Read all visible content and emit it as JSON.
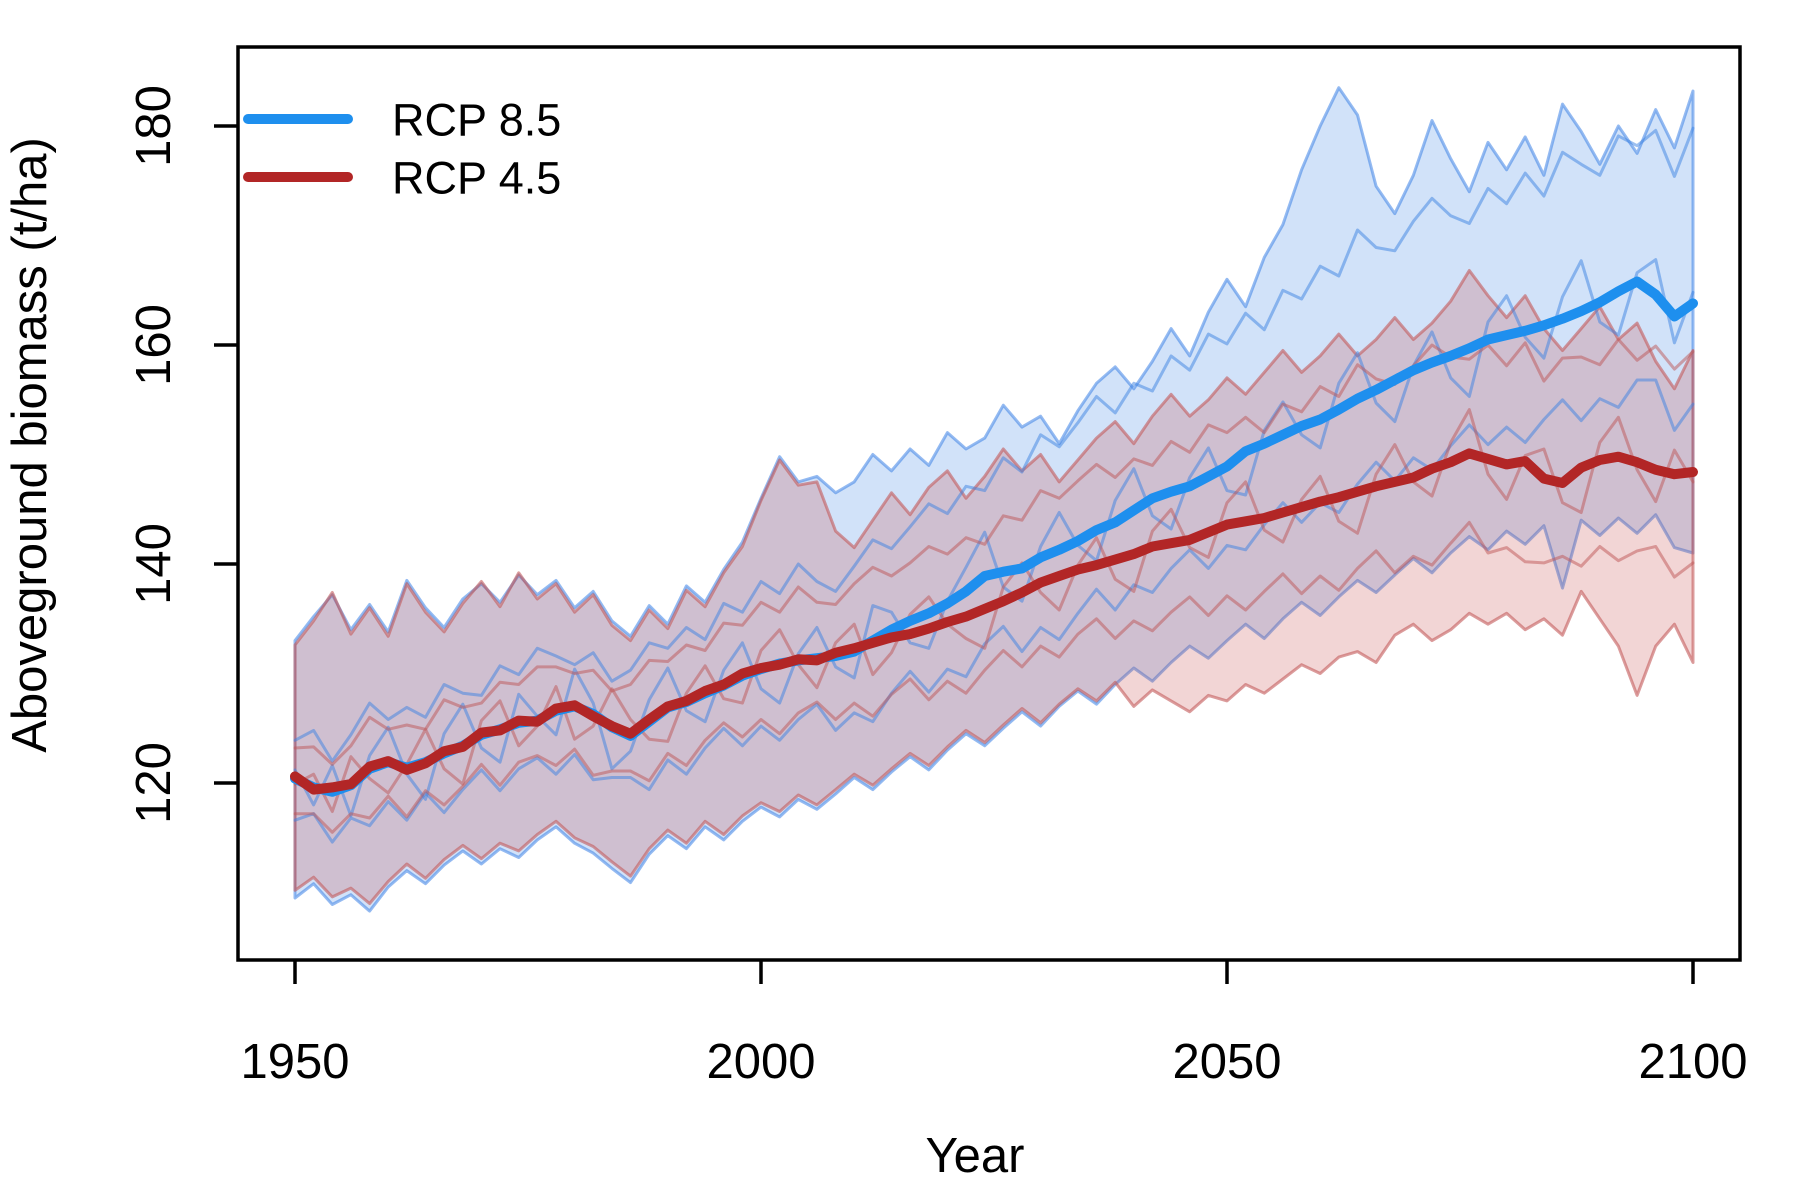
{
  "axes": {
    "x": {
      "label": "Year",
      "ticks": [
        "1950",
        "2000",
        "2050",
        "2100"
      ],
      "tick_values": [
        1950,
        2000,
        2050,
        2100
      ]
    },
    "y": {
      "label": "Aboveground biomass (t/ha)",
      "ticks": [
        "120",
        "140",
        "160",
        "180"
      ],
      "tick_values": [
        120,
        140,
        160,
        180
      ]
    }
  },
  "legend": {
    "items": [
      {
        "label": "RCP 8.5",
        "color": "#1E8FEE"
      },
      {
        "label": "RCP 4.5",
        "color": "#B22626"
      }
    ]
  },
  "colors": {
    "rcp85_line": "#1E8FEE",
    "rcp85_band_fill": "rgba(70,140,230,0.25)",
    "rcp85_band_edge": "rgba(60,130,230,0.55)",
    "rcp85_member": "rgba(60,130,225,0.50)",
    "rcp45_line": "#B22626",
    "rcp45_band_fill": "rgba(200,80,80,0.24)",
    "rcp45_band_edge": "rgba(195,90,90,0.60)",
    "rcp45_member": "rgba(190,85,85,0.50)",
    "axis": "#000000"
  },
  "chart_data": {
    "type": "line",
    "title": "",
    "xlabel": "Year",
    "ylabel": "Aboveground biomass (t/ha)",
    "xlim": [
      1950,
      2100
    ],
    "ylim": [
      104,
      187
    ],
    "grid": false,
    "legend_position": "top-left",
    "x": [
      1950,
      1952,
      1954,
      1956,
      1958,
      1960,
      1962,
      1964,
      1966,
      1968,
      1970,
      1972,
      1974,
      1976,
      1978,
      1980,
      1982,
      1984,
      1986,
      1988,
      1990,
      1992,
      1994,
      1996,
      1998,
      2000,
      2002,
      2004,
      2006,
      2008,
      2010,
      2012,
      2014,
      2016,
      2018,
      2020,
      2022,
      2024,
      2026,
      2028,
      2030,
      2032,
      2034,
      2036,
      2038,
      2040,
      2042,
      2044,
      2046,
      2048,
      2050,
      2052,
      2054,
      2056,
      2058,
      2060,
      2062,
      2064,
      2066,
      2068,
      2070,
      2072,
      2074,
      2076,
      2078,
      2080,
      2082,
      2084,
      2086,
      2088,
      2090,
      2092,
      2094,
      2096,
      2098,
      2100
    ],
    "series": [
      {
        "name": "RCP 8.5",
        "scenario": "rcp85",
        "role": "ensemble-mean",
        "values": [
          120.4,
          119.6,
          119.2,
          119.8,
          121.3,
          121.9,
          121.4,
          121.9,
          122.7,
          123.4,
          124.4,
          124.9,
          125.5,
          125.7,
          126.6,
          127.0,
          126.3,
          125.1,
          124.3,
          125.6,
          126.9,
          127.4,
          128.2,
          128.9,
          129.8,
          130.4,
          130.9,
          131.2,
          131.4,
          131.6,
          132.0,
          133.0,
          134.0,
          134.8,
          135.5,
          136.4,
          137.5,
          138.9,
          139.3,
          139.6,
          140.6,
          141.3,
          142.1,
          143.1,
          143.8,
          144.9,
          146.0,
          146.6,
          147.1,
          148.0,
          148.9,
          150.3,
          151.0,
          151.8,
          152.6,
          153.2,
          154.1,
          155.1,
          155.9,
          156.8,
          157.7,
          158.4,
          159.0,
          159.7,
          160.5,
          160.9,
          161.3,
          161.8,
          162.4,
          163.1,
          163.9,
          164.9,
          165.8,
          164.6,
          162.6,
          163.8
        ]
      },
      {
        "name": "RCP 4.5",
        "scenario": "rcp45",
        "role": "ensemble-mean",
        "values": [
          120.6,
          119.4,
          119.6,
          119.9,
          121.5,
          122.0,
          121.2,
          121.8,
          122.9,
          123.3,
          124.6,
          124.8,
          125.7,
          125.6,
          126.8,
          127.1,
          126.1,
          125.2,
          124.5,
          125.8,
          127.0,
          127.5,
          128.4,
          129.0,
          130.0,
          130.5,
          130.8,
          131.3,
          131.2,
          131.9,
          132.3,
          132.8,
          133.3,
          133.6,
          134.1,
          134.7,
          135.2,
          135.9,
          136.6,
          137.4,
          138.3,
          138.9,
          139.5,
          139.9,
          140.4,
          140.9,
          141.6,
          141.9,
          142.2,
          142.9,
          143.6,
          143.9,
          144.2,
          144.7,
          145.2,
          145.7,
          146.1,
          146.6,
          147.1,
          147.5,
          147.9,
          148.7,
          149.3,
          150.1,
          149.6,
          149.1,
          149.4,
          147.8,
          147.4,
          148.8,
          149.5,
          149.8,
          149.3,
          148.6,
          148.2,
          148.4
        ]
      }
    ],
    "bands": [
      {
        "name": "RCP 8.5 ensemble range",
        "scenario": "rcp85",
        "upper": [
          133.0,
          135.2,
          137.2,
          134.0,
          136.3,
          133.8,
          138.5,
          136.0,
          134.2,
          136.8,
          138.2,
          136.5,
          139.0,
          137.2,
          138.5,
          136.0,
          137.5,
          134.8,
          133.4,
          136.2,
          134.5,
          138.0,
          136.5,
          139.5,
          142.0,
          146.0,
          149.8,
          147.5,
          148.0,
          146.5,
          147.5,
          150.0,
          148.5,
          150.5,
          149.0,
          152.0,
          150.5,
          151.5,
          154.5,
          152.5,
          153.5,
          151.0,
          154.0,
          156.5,
          158.0,
          156.0,
          158.5,
          161.5,
          159.0,
          163.0,
          166.0,
          163.5,
          168.0,
          171.0,
          176.0,
          180.0,
          183.5,
          181.0,
          174.5,
          172.0,
          175.5,
          180.5,
          177.0,
          174.0,
          178.5,
          176.0,
          179.0,
          175.5,
          182.0,
          179.5,
          176.5,
          180.0,
          177.5,
          181.5,
          178.0,
          183.2
        ],
        "lower": [
          109.5,
          110.8,
          108.9,
          109.8,
          108.3,
          110.5,
          112.0,
          110.8,
          112.5,
          113.8,
          112.6,
          114.0,
          113.2,
          114.8,
          116.0,
          114.5,
          113.6,
          112.2,
          110.9,
          113.5,
          115.2,
          114.0,
          116.0,
          114.8,
          116.5,
          117.8,
          116.9,
          118.5,
          117.6,
          119.0,
          120.5,
          119.4,
          121.0,
          122.4,
          121.2,
          123.0,
          124.5,
          123.4,
          125.0,
          126.5,
          125.2,
          127.0,
          128.4,
          127.2,
          129.0,
          130.5,
          129.3,
          131.0,
          132.5,
          131.4,
          133.0,
          134.5,
          133.2,
          135.0,
          136.5,
          135.3,
          137.0,
          138.5,
          137.4,
          139.0,
          140.5,
          139.2,
          141.0,
          142.5,
          141.3,
          143.0,
          141.8,
          143.5,
          137.8,
          144.0,
          142.6,
          144.2,
          142.8,
          144.5,
          141.5,
          141.0
        ]
      },
      {
        "name": "RCP 4.5 ensemble range",
        "scenario": "rcp45",
        "upper": [
          132.6,
          134.8,
          137.4,
          133.6,
          136.0,
          133.4,
          138.2,
          135.6,
          133.8,
          136.4,
          138.4,
          136.1,
          139.2,
          136.8,
          138.2,
          135.6,
          137.2,
          134.4,
          133.0,
          135.8,
          134.1,
          137.6,
          136.1,
          139.2,
          141.6,
          145.8,
          149.5,
          147.2,
          147.5,
          143.0,
          141.5,
          144.0,
          146.5,
          144.5,
          147.0,
          148.5,
          146.0,
          148.0,
          150.5,
          148.5,
          150.0,
          147.5,
          149.5,
          151.5,
          153.0,
          151.0,
          153.5,
          155.5,
          153.5,
          155.0,
          157.0,
          155.5,
          157.5,
          159.5,
          157.5,
          159.0,
          161.0,
          159.0,
          160.5,
          162.5,
          160.5,
          162.0,
          164.0,
          166.8,
          164.5,
          162.5,
          164.5,
          161.5,
          159.5,
          161.5,
          163.5,
          160.5,
          162.0,
          158.5,
          156.0,
          159.5
        ],
        "lower": [
          110.2,
          111.4,
          109.6,
          110.4,
          109.0,
          111.0,
          112.6,
          111.3,
          113.0,
          114.3,
          113.1,
          114.5,
          113.8,
          115.3,
          116.5,
          115.0,
          114.2,
          112.8,
          111.5,
          114.0,
          115.7,
          114.5,
          116.5,
          115.3,
          117.0,
          118.2,
          117.4,
          118.9,
          118.0,
          119.4,
          120.8,
          119.8,
          121.3,
          122.7,
          121.6,
          123.3,
          124.8,
          123.7,
          125.3,
          126.8,
          125.5,
          127.2,
          128.6,
          127.5,
          129.2,
          127.0,
          128.5,
          127.5,
          126.5,
          128.0,
          127.5,
          129.0,
          128.2,
          129.5,
          130.8,
          130.0,
          131.5,
          132.0,
          131.0,
          133.5,
          134.5,
          133.0,
          134.0,
          135.5,
          134.5,
          135.5,
          134.0,
          135.0,
          133.5,
          137.5,
          135.0,
          132.5,
          128.0,
          132.5,
          134.5,
          131.0
        ]
      }
    ],
    "members": [
      {
        "scenario": "rcp85",
        "offsets_from_mean": [
          3.5,
          5.2,
          2.8,
          4.6,
          6.0,
          3.9,
          5.5,
          4.1,
          6.3,
          4.8,
          3.6,
          5.8,
          4.4,
          6.6,
          5.0,
          3.8,
          5.6,
          4.2,
          6.0,
          7.2,
          5.4,
          6.8,
          4.9,
          7.5,
          5.8,
          8.0,
          6.4,
          8.8,
          7.0,
          5.9,
          7.8,
          9.2,
          7.4,
          8.6,
          10.0,
          8.2,
          9.6,
          7.8,
          10.4,
          8.8,
          11.2,
          9.4,
          10.8,
          12.2,
          10.0,
          11.6,
          9.8,
          12.4,
          10.6,
          13.0,
          11.2,
          12.6,
          10.4,
          13.2,
          11.6,
          14.0,
          12.2,
          15.4,
          13.0,
          11.8,
          13.6,
          15.0,
          12.8,
          11.4,
          13.8,
          12.0,
          14.4,
          11.8,
          15.2,
          13.4,
          11.6,
          14.2,
          12.4,
          15.0,
          12.8,
          16.0
        ]
      },
      {
        "scenario": "rcp85",
        "offsets_from_mean": [
          0.8,
          -1.6,
          2.4,
          -2.8,
          1.2,
          3.2,
          -0.6,
          -3.4,
          1.8,
          3.8,
          -1.2,
          -3.0,
          2.6,
          0.4,
          -2.2,
          3.4,
          1.0,
          -3.8,
          -1.4,
          2.0,
          3.6,
          -0.8,
          -2.6,
          1.4,
          3.0,
          -1.8,
          -3.6,
          0.6,
          2.8,
          -1.0,
          -2.4,
          3.2,
          1.6,
          -2.0,
          -3.2,
          0.2,
          2.2,
          4.0,
          -1.4,
          -3.0,
          1.0,
          3.4,
          -0.4,
          -2.8,
          2.0,
          3.8,
          -1.6,
          -3.4,
          0.8,
          2.6,
          -2.2,
          -4.0,
          1.2,
          3.0,
          -0.8,
          -2.6,
          2.4,
          4.2,
          -1.2,
          -3.8,
          0.4,
          2.8,
          -2.0,
          -4.4,
          1.6,
          3.6,
          -0.6,
          -3.0,
          2.0,
          4.6,
          -1.8,
          -4.0,
          0.8,
          3.2,
          -2.4,
          1.0
        ]
      },
      {
        "scenario": "rcp85",
        "offsets_from_mean": [
          -3.8,
          -2.4,
          -4.6,
          -3.0,
          -5.2,
          -3.6,
          -4.8,
          -2.8,
          -5.4,
          -4.0,
          -3.2,
          -5.6,
          -4.2,
          -3.4,
          -5.8,
          -4.4,
          -6.0,
          -4.6,
          -3.8,
          -6.2,
          -4.8,
          -6.6,
          -5.0,
          -3.9,
          -6.4,
          -5.2,
          -7.0,
          -5.4,
          -4.2,
          -6.8,
          -5.6,
          -7.4,
          -5.8,
          -4.6,
          -7.2,
          -6.0,
          -7.8,
          -6.2,
          -5.0,
          -7.6,
          -6.4,
          -8.2,
          -6.6,
          -5.4,
          -8.0,
          -6.8,
          -8.6,
          -7.0,
          -5.8,
          -8.4,
          -7.2,
          -9.0,
          -7.4,
          -6.2,
          -8.8,
          -7.6,
          -9.4,
          -7.8,
          -6.6,
          -9.2,
          -8.0,
          -9.8,
          -8.2,
          -7.0,
          -9.6,
          -8.4,
          -10.2,
          -8.6,
          -7.4,
          -10.0,
          -8.8,
          -10.6,
          -9.0,
          -7.8,
          -10.4,
          -9.2
        ]
      },
      {
        "scenario": "rcp45",
        "offsets_from_mean": [
          2.6,
          3.9,
          2.1,
          3.5,
          4.5,
          2.9,
          4.1,
          3.1,
          4.7,
          3.6,
          2.7,
          4.4,
          3.3,
          5.0,
          3.8,
          2.9,
          4.2,
          3.2,
          4.5,
          5.4,
          4.1,
          5.1,
          3.7,
          5.6,
          4.4,
          6.0,
          4.8,
          6.6,
          5.3,
          4.4,
          5.9,
          6.9,
          5.6,
          6.5,
          7.5,
          6.2,
          7.2,
          5.9,
          7.8,
          6.6,
          8.4,
          7.1,
          8.1,
          9.2,
          7.5,
          8.7,
          7.4,
          9.3,
          8.0,
          9.8,
          8.4,
          9.5,
          7.8,
          9.9,
          8.7,
          10.5,
          9.2,
          11.6,
          9.8,
          8.9,
          10.2,
          11.3,
          9.6,
          8.6,
          10.4,
          9.0,
          10.8,
          8.9,
          11.4,
          10.1,
          8.7,
          10.7,
          9.3,
          11.3,
          9.6,
          11.0
        ]
      },
      {
        "scenario": "rcp45",
        "offsets_from_mean": [
          -0.7,
          1.4,
          -2.2,
          2.5,
          -1.1,
          -2.9,
          0.5,
          3.1,
          -1.6,
          -3.4,
          1.1,
          2.7,
          -2.3,
          -0.4,
          2.0,
          -3.1,
          -0.9,
          3.4,
          1.3,
          -1.8,
          -3.2,
          0.7,
          2.3,
          -1.3,
          -2.7,
          1.6,
          3.2,
          -0.5,
          -2.5,
          0.9,
          2.2,
          -2.9,
          -1.4,
          1.8,
          2.9,
          -0.2,
          -2.0,
          -3.6,
          1.3,
          2.7,
          -0.9,
          -3.1,
          0.4,
          2.5,
          -1.8,
          -3.4,
          1.4,
          3.1,
          -0.7,
          -2.3,
          2.0,
          3.6,
          -1.1,
          -2.7,
          0.7,
          2.3,
          -2.2,
          -3.8,
          1.1,
          3.4,
          -0.4,
          -2.5,
          1.8,
          4.0,
          -1.4,
          -3.2,
          0.5,
          2.7,
          -1.8,
          -4.1,
          1.6,
          3.6,
          -0.7,
          -2.9,
          2.2,
          -0.9
        ]
      },
      {
        "scenario": "rcp45",
        "offsets_from_mean": [
          -3.4,
          -2.2,
          -4.1,
          -2.7,
          -4.7,
          -3.2,
          -4.3,
          -2.5,
          -4.9,
          -3.6,
          -2.9,
          -5.0,
          -3.8,
          -3.1,
          -5.2,
          -4.0,
          -5.4,
          -4.1,
          -3.4,
          -5.6,
          -4.3,
          -5.9,
          -4.5,
          -3.5,
          -5.8,
          -4.7,
          -6.3,
          -4.9,
          -3.8,
          -6.1,
          -5.0,
          -6.7,
          -5.2,
          -4.1,
          -6.5,
          -5.4,
          -7.0,
          -5.6,
          -4.5,
          -6.8,
          -5.8,
          -7.4,
          -5.9,
          -4.9,
          -7.2,
          -6.1,
          -7.7,
          -6.3,
          -5.2,
          -7.6,
          -6.5,
          -8.1,
          -6.7,
          -5.6,
          -7.9,
          -6.8,
          -8.5,
          -7.0,
          -5.9,
          -8.3,
          -7.2,
          -8.8,
          -7.4,
          -6.3,
          -8.6,
          -7.6,
          -9.2,
          -7.7,
          -6.7,
          -9.0,
          -7.9,
          -9.5,
          -8.1,
          -7.0,
          -9.4,
          -8.3
        ]
      }
    ]
  }
}
